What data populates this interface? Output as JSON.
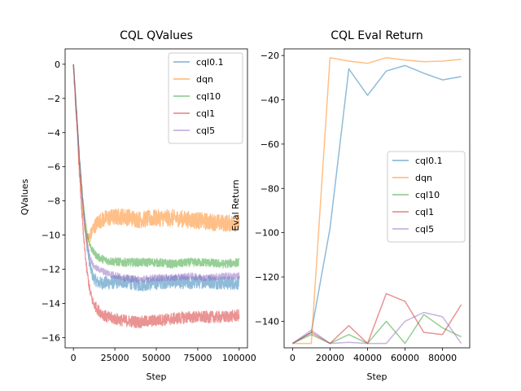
{
  "chart_data": [
    {
      "type": "line",
      "title": "CQL QValues",
      "xlabel": "Step",
      "ylabel": "QValues",
      "xlim": [
        -5000,
        105000
      ],
      "ylim": [
        -16.6,
        0.9
      ],
      "xticks": [
        0,
        25000,
        50000,
        75000,
        100000
      ],
      "xtick_labels": [
        "0",
        "25000",
        "50000",
        "75000",
        "100000"
      ],
      "yticks": [
        0,
        -2,
        -4,
        -6,
        -8,
        -10,
        -12,
        -14,
        -16
      ],
      "ytick_labels": [
        "0",
        "−2",
        "−4",
        "−6",
        "−8",
        "−10",
        "−12",
        "−14",
        "−16"
      ],
      "legend_position": "top-right",
      "noisy": true,
      "series": [
        {
          "name": "cql0.1",
          "color": "#1f77b4",
          "x": [
            0,
            2000,
            4000,
            6000,
            8000,
            10000,
            12000,
            15000,
            20000,
            30000,
            40000,
            50000,
            60000,
            70000,
            80000,
            90000,
            100000
          ],
          "values": [
            0,
            -3.0,
            -6.0,
            -8.5,
            -10.5,
            -11.8,
            -12.5,
            -12.8,
            -12.8,
            -12.7,
            -12.9,
            -12.8,
            -12.7,
            -12.8,
            -12.7,
            -12.8,
            -12.8
          ],
          "noise": 0.4
        },
        {
          "name": "dqn",
          "color": "#ff7f0e",
          "x": [
            0,
            2000,
            4000,
            6000,
            8000,
            10000,
            12000,
            15000,
            20000,
            30000,
            40000,
            50000,
            60000,
            70000,
            80000,
            90000,
            100000
          ],
          "values": [
            0,
            -3.2,
            -6.5,
            -9.0,
            -10.3,
            -10.1,
            -9.6,
            -9.2,
            -9.0,
            -8.9,
            -9.1,
            -9.0,
            -9.0,
            -9.1,
            -9.2,
            -9.3,
            -9.3
          ],
          "noise": 0.5
        },
        {
          "name": "cql10",
          "color": "#2ca02c",
          "x": [
            0,
            2000,
            4000,
            6000,
            8000,
            10000,
            12000,
            15000,
            20000,
            30000,
            40000,
            50000,
            60000,
            70000,
            80000,
            90000,
            100000
          ],
          "values": [
            0,
            -3.0,
            -6.0,
            -8.3,
            -9.8,
            -10.6,
            -11.0,
            -11.3,
            -11.5,
            -11.6,
            -11.6,
            -11.6,
            -11.7,
            -11.6,
            -11.6,
            -11.7,
            -11.6
          ],
          "noise": 0.25
        },
        {
          "name": "cql1",
          "color": "#d62728",
          "x": [
            0,
            2000,
            4000,
            6000,
            8000,
            10000,
            12000,
            15000,
            20000,
            30000,
            40000,
            50000,
            60000,
            70000,
            80000,
            90000,
            100000
          ],
          "values": [
            0,
            -3.5,
            -7.0,
            -10.0,
            -12.0,
            -13.3,
            -14.0,
            -14.4,
            -14.8,
            -15.0,
            -15.1,
            -15.0,
            -14.9,
            -14.8,
            -14.8,
            -14.8,
            -14.7
          ],
          "noise": 0.35
        },
        {
          "name": "cql5",
          "color": "#9467bd",
          "x": [
            0,
            2000,
            4000,
            6000,
            8000,
            10000,
            12000,
            15000,
            20000,
            30000,
            40000,
            50000,
            60000,
            70000,
            80000,
            90000,
            100000
          ],
          "values": [
            0,
            -3.0,
            -6.0,
            -8.5,
            -10.3,
            -11.3,
            -11.8,
            -12.0,
            -12.2,
            -12.5,
            -12.6,
            -12.5,
            -12.5,
            -12.4,
            -12.5,
            -12.4,
            -12.4
          ],
          "noise": 0.2
        }
      ]
    },
    {
      "type": "line",
      "title": "CQL Eval Return",
      "xlabel": "Step",
      "ylabel": "Eval Return",
      "xlim": [
        -4500,
        94500
      ],
      "ylim": [
        -152,
        -17
      ],
      "xticks": [
        0,
        20000,
        40000,
        60000,
        80000
      ],
      "xtick_labels": [
        "0",
        "20000",
        "40000",
        "60000",
        "80000"
      ],
      "yticks": [
        -20,
        -40,
        -60,
        -80,
        -100,
        -120,
        -140
      ],
      "ytick_labels": [
        "−20",
        "−40",
        "−60",
        "−80",
        "−100",
        "−120",
        "−140"
      ],
      "legend_position": "center-right",
      "noisy": false,
      "series": [
        {
          "name": "cql0.1",
          "color": "#1f77b4",
          "x": [
            0,
            10000,
            20000,
            30000,
            40000,
            50000,
            60000,
            70000,
            80000,
            90000
          ],
          "values": [
            -150,
            -145,
            -98,
            -26,
            -38,
            -27,
            -24.5,
            -28,
            -31,
            -29.5
          ]
        },
        {
          "name": "dqn",
          "color": "#ff7f0e",
          "x": [
            0,
            10000,
            20000,
            30000,
            40000,
            50000,
            60000,
            70000,
            80000,
            90000
          ],
          "values": [
            -150,
            -150,
            -21,
            -22.5,
            -23.5,
            -21,
            -22,
            -22.8,
            -22.5,
            -21.7
          ]
        },
        {
          "name": "cql10",
          "color": "#2ca02c",
          "x": [
            0,
            10000,
            20000,
            30000,
            40000,
            50000,
            60000,
            70000,
            80000,
            90000
          ],
          "values": [
            -150,
            -146,
            -150,
            -146,
            -150,
            -140,
            -150,
            -137,
            -143,
            -147
          ]
        },
        {
          "name": "cql1",
          "color": "#d62728",
          "x": [
            0,
            10000,
            20000,
            30000,
            40000,
            50000,
            60000,
            70000,
            80000,
            90000
          ],
          "values": [
            -150,
            -145,
            -150,
            -142,
            -150,
            -127.5,
            -131,
            -145,
            -146,
            -132.5
          ]
        },
        {
          "name": "cql5",
          "color": "#9467bd",
          "x": [
            0,
            10000,
            20000,
            30000,
            40000,
            50000,
            60000,
            70000,
            80000,
            90000
          ],
          "values": [
            -150,
            -144,
            -150,
            -149.5,
            -150,
            -150,
            -140,
            -136,
            -138,
            -150
          ]
        }
      ]
    }
  ]
}
